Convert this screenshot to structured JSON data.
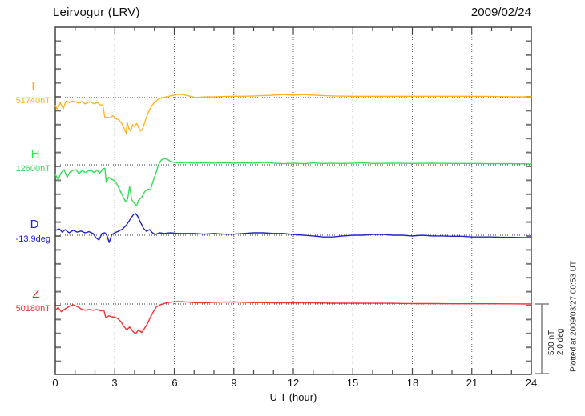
{
  "header": {
    "station_title": "Leirvogur (LRV)",
    "date": "2009/02/24"
  },
  "axis_x": {
    "label": "U T (hour)",
    "ticks": [
      "0",
      "3",
      "6",
      "9",
      "12",
      "15",
      "18",
      "21",
      "24"
    ]
  },
  "scale_bar": {
    "line1": "500 nT",
    "line2": "2.0 deg"
  },
  "footer_note": "Plotted at 2009/03/27 00:53 UT",
  "colors": {
    "F": "#FFB41E",
    "H": "#33DD55",
    "D": "#2222CC",
    "Z": "#EE3333",
    "frame": "#444444",
    "grid": "#666666",
    "baseline": "#333333",
    "side_tick": "#777777",
    "scale_bar": "#808080"
  },
  "chart_data": {
    "type": "line",
    "title": "Leirvogur (LRV) magnetogram",
    "subtitle": "2009/02/24",
    "xlabel": "U T (hour)",
    "x_range": [
      0,
      24
    ],
    "x_gridlines_every_hours": 3,
    "grid": "dotted",
    "scale": {
      "nT_per_bar": 500,
      "deg_per_bar": 2.0
    },
    "series": [
      {
        "id": "F",
        "label": "F",
        "baseline_label": "51740nT",
        "baseline_value": 51740,
        "unit": "nT",
        "color": "#FFB41E",
        "points": [
          [
            0,
            -57
          ],
          [
            0.1,
            -86
          ],
          [
            0.25,
            -35
          ],
          [
            0.4,
            -80
          ],
          [
            0.55,
            -25
          ],
          [
            0.7,
            -35
          ],
          [
            0.85,
            -25
          ],
          [
            1.0,
            -30
          ],
          [
            1.2,
            -40
          ],
          [
            1.35,
            -28
          ],
          [
            1.5,
            -45
          ],
          [
            1.65,
            -35
          ],
          [
            1.8,
            -30
          ],
          [
            1.95,
            -45
          ],
          [
            2.1,
            -35
          ],
          [
            2.25,
            -50
          ],
          [
            2.4,
            -55
          ],
          [
            2.5,
            -145
          ],
          [
            2.6,
            -140
          ],
          [
            2.75,
            -145
          ],
          [
            2.9,
            -130
          ],
          [
            3.05,
            -150
          ],
          [
            3.2,
            -160
          ],
          [
            3.35,
            -185
          ],
          [
            3.5,
            -230
          ],
          [
            3.57,
            -255
          ],
          [
            3.63,
            -175
          ],
          [
            3.7,
            -220
          ],
          [
            3.8,
            -240
          ],
          [
            3.9,
            -195
          ],
          [
            4.0,
            -210
          ],
          [
            4.1,
            -185
          ],
          [
            4.2,
            -215
          ],
          [
            4.3,
            -240
          ],
          [
            4.42,
            -220
          ],
          [
            4.55,
            -160
          ],
          [
            4.7,
            -105
          ],
          [
            4.85,
            -60
          ],
          [
            5.0,
            -35
          ],
          [
            5.15,
            -15
          ],
          [
            5.3,
            -5
          ],
          [
            5.6,
            5
          ],
          [
            5.9,
            15
          ],
          [
            6.2,
            25
          ],
          [
            6.5,
            20
          ],
          [
            6.8,
            10
          ],
          [
            7.1,
            0
          ],
          [
            7.5,
            5
          ],
          [
            8,
            5
          ],
          [
            8.5,
            8
          ],
          [
            9,
            10
          ],
          [
            9.5,
            10
          ],
          [
            10,
            12
          ],
          [
            10.5,
            15
          ],
          [
            11,
            18
          ],
          [
            11.5,
            22
          ],
          [
            12,
            18
          ],
          [
            12.5,
            22
          ],
          [
            13,
            18
          ],
          [
            13.5,
            15
          ],
          [
            14,
            12
          ],
          [
            15,
            10
          ],
          [
            16,
            10
          ],
          [
            17,
            10
          ],
          [
            18,
            10
          ],
          [
            19,
            10
          ],
          [
            20,
            10
          ],
          [
            21,
            10
          ],
          [
            22,
            8
          ],
          [
            23,
            6
          ],
          [
            24,
            6
          ]
        ]
      },
      {
        "id": "H",
        "label": "H",
        "baseline_label": "12600nT",
        "baseline_value": 12600,
        "unit": "nT",
        "color": "#33DD55",
        "points": [
          [
            0,
            -70
          ],
          [
            0.15,
            -105
          ],
          [
            0.3,
            -55
          ],
          [
            0.45,
            -35
          ],
          [
            0.6,
            -90
          ],
          [
            0.75,
            -50
          ],
          [
            0.9,
            -40
          ],
          [
            1.05,
            -35
          ],
          [
            1.2,
            -65
          ],
          [
            1.35,
            -40
          ],
          [
            1.5,
            -55
          ],
          [
            1.65,
            -45
          ],
          [
            1.8,
            -40
          ],
          [
            1.95,
            -55
          ],
          [
            2.1,
            -40
          ],
          [
            2.25,
            -60
          ],
          [
            2.4,
            -30
          ],
          [
            2.5,
            -25
          ],
          [
            2.57,
            -125
          ],
          [
            2.7,
            -90
          ],
          [
            2.85,
            -105
          ],
          [
            3.0,
            -115
          ],
          [
            3.15,
            -150
          ],
          [
            3.3,
            -195
          ],
          [
            3.45,
            -240
          ],
          [
            3.55,
            -265
          ],
          [
            3.65,
            -245
          ],
          [
            3.75,
            -155
          ],
          [
            3.85,
            -250
          ],
          [
            3.95,
            -270
          ],
          [
            4.1,
            -295
          ],
          [
            4.2,
            -255
          ],
          [
            4.35,
            -235
          ],
          [
            4.5,
            -195
          ],
          [
            4.65,
            -175
          ],
          [
            4.8,
            -180
          ],
          [
            4.95,
            -110
          ],
          [
            5.1,
            -50
          ],
          [
            5.2,
            0
          ],
          [
            5.35,
            35
          ],
          [
            5.5,
            45
          ],
          [
            5.65,
            40
          ],
          [
            5.8,
            25
          ],
          [
            6.0,
            18
          ],
          [
            6.3,
            15
          ],
          [
            6.6,
            18
          ],
          [
            7,
            12
          ],
          [
            7.5,
            15
          ],
          [
            8,
            12
          ],
          [
            8.5,
            15
          ],
          [
            9,
            12
          ],
          [
            9.5,
            14
          ],
          [
            10,
            12
          ],
          [
            10.5,
            18
          ],
          [
            11,
            12
          ],
          [
            11.5,
            8
          ],
          [
            12,
            12
          ],
          [
            12.5,
            8
          ],
          [
            13,
            14
          ],
          [
            13.5,
            10
          ],
          [
            14,
            12
          ],
          [
            14.5,
            10
          ],
          [
            15,
            12
          ],
          [
            15.5,
            14
          ],
          [
            16,
            10
          ],
          [
            17,
            12
          ],
          [
            18,
            10
          ],
          [
            19,
            12
          ],
          [
            20,
            10
          ],
          [
            21,
            10
          ],
          [
            22,
            8
          ],
          [
            23,
            8
          ],
          [
            24,
            6
          ]
        ]
      },
      {
        "id": "D",
        "label": "D",
        "baseline_label": "-13.9deg",
        "baseline_value": -13.9,
        "unit": "deg",
        "color": "#2222CC",
        "points": [
          [
            0,
            0.14
          ],
          [
            0.2,
            0.18
          ],
          [
            0.35,
            0.09
          ],
          [
            0.5,
            0.16
          ],
          [
            0.7,
            0.07
          ],
          [
            0.9,
            0.14
          ],
          [
            1.1,
            0.09
          ],
          [
            1.3,
            0.12
          ],
          [
            1.5,
            0.07
          ],
          [
            1.7,
            0.1
          ],
          [
            1.9,
            0.05
          ],
          [
            2.05,
            -0.07
          ],
          [
            2.2,
            -0.14
          ],
          [
            2.35,
            0.05
          ],
          [
            2.5,
            0.07
          ],
          [
            2.6,
            0.0
          ],
          [
            2.72,
            -0.21
          ],
          [
            2.85,
            0.02
          ],
          [
            3.0,
            0.07
          ],
          [
            3.2,
            0.12
          ],
          [
            3.4,
            0.18
          ],
          [
            3.6,
            0.3
          ],
          [
            3.8,
            0.48
          ],
          [
            3.95,
            0.6
          ],
          [
            4.05,
            0.62
          ],
          [
            4.15,
            0.55
          ],
          [
            4.3,
            0.37
          ],
          [
            4.45,
            0.2
          ],
          [
            4.6,
            0.11
          ],
          [
            4.75,
            0.16
          ],
          [
            4.9,
            0.07
          ],
          [
            5.05,
            0.02
          ],
          [
            5.25,
            0.07
          ],
          [
            5.5,
            0.05
          ],
          [
            5.8,
            0.07
          ],
          [
            6.2,
            0.05
          ],
          [
            6.6,
            0.05
          ],
          [
            7,
            0.05
          ],
          [
            7.5,
            0.03
          ],
          [
            8,
            0.05
          ],
          [
            8.5,
            0.03
          ],
          [
            9,
            0.03
          ],
          [
            9.5,
            0.05
          ],
          [
            10,
            0.07
          ],
          [
            10.5,
            0.07
          ],
          [
            11,
            0.05
          ],
          [
            11.5,
            0.05
          ],
          [
            12,
            0.02
          ],
          [
            12.5,
            0.0
          ],
          [
            13,
            -0.02
          ],
          [
            13.5,
            -0.05
          ],
          [
            14,
            -0.05
          ],
          [
            14.5,
            -0.02
          ],
          [
            15,
            0.0
          ],
          [
            15.5,
            0.0
          ],
          [
            16,
            0.02
          ],
          [
            16.5,
            0.02
          ],
          [
            17,
            0.0
          ],
          [
            17.5,
            0.0
          ],
          [
            18,
            -0.02
          ],
          [
            18.5,
            0.0
          ],
          [
            19,
            -0.02
          ],
          [
            19.5,
            -0.02
          ],
          [
            20,
            -0.03
          ],
          [
            20.5,
            -0.03
          ],
          [
            21,
            -0.05
          ],
          [
            21.5,
            -0.05
          ],
          [
            22,
            -0.05
          ],
          [
            22.5,
            -0.06
          ],
          [
            23,
            -0.06
          ],
          [
            23.5,
            -0.07
          ],
          [
            24,
            -0.07
          ]
        ]
      },
      {
        "id": "Z",
        "label": "Z",
        "baseline_label": "50180nT",
        "baseline_value": 50180,
        "unit": "nT",
        "color": "#EE3333",
        "points": [
          [
            0,
            -45
          ],
          [
            0.15,
            -25
          ],
          [
            0.3,
            -55
          ],
          [
            0.5,
            -35
          ],
          [
            0.7,
            -18
          ],
          [
            0.9,
            -6
          ],
          [
            1.1,
            -18
          ],
          [
            1.3,
            -35
          ],
          [
            1.5,
            -45
          ],
          [
            1.7,
            -40
          ],
          [
            1.9,
            -45
          ],
          [
            2.1,
            -40
          ],
          [
            2.3,
            -50
          ],
          [
            2.45,
            -45
          ],
          [
            2.55,
            -100
          ],
          [
            2.7,
            -85
          ],
          [
            2.85,
            -92
          ],
          [
            3.0,
            -95
          ],
          [
            3.15,
            -105
          ],
          [
            3.3,
            -125
          ],
          [
            3.45,
            -160
          ],
          [
            3.6,
            -185
          ],
          [
            3.75,
            -165
          ],
          [
            3.9,
            -195
          ],
          [
            4.05,
            -215
          ],
          [
            4.2,
            -185
          ],
          [
            4.35,
            -205
          ],
          [
            4.5,
            -175
          ],
          [
            4.65,
            -140
          ],
          [
            4.8,
            -95
          ],
          [
            4.95,
            -55
          ],
          [
            5.1,
            -20
          ],
          [
            5.3,
            -5
          ],
          [
            5.6,
            8
          ],
          [
            5.9,
            15
          ],
          [
            6.2,
            18
          ],
          [
            6.6,
            15
          ],
          [
            7,
            10
          ],
          [
            7.5,
            8
          ],
          [
            8,
            12
          ],
          [
            8.5,
            14
          ],
          [
            9,
            15
          ],
          [
            9.5,
            12
          ],
          [
            10,
            10
          ],
          [
            10.5,
            10
          ],
          [
            11,
            8
          ],
          [
            11.5,
            8
          ],
          [
            12,
            8
          ],
          [
            13,
            8
          ],
          [
            14,
            6
          ],
          [
            15,
            6
          ],
          [
            16,
            5
          ],
          [
            17,
            5
          ],
          [
            18,
            3
          ],
          [
            19,
            3
          ],
          [
            20,
            2
          ],
          [
            21,
            2
          ],
          [
            22,
            2
          ],
          [
            23,
            1
          ],
          [
            24,
            0
          ]
        ]
      }
    ]
  }
}
